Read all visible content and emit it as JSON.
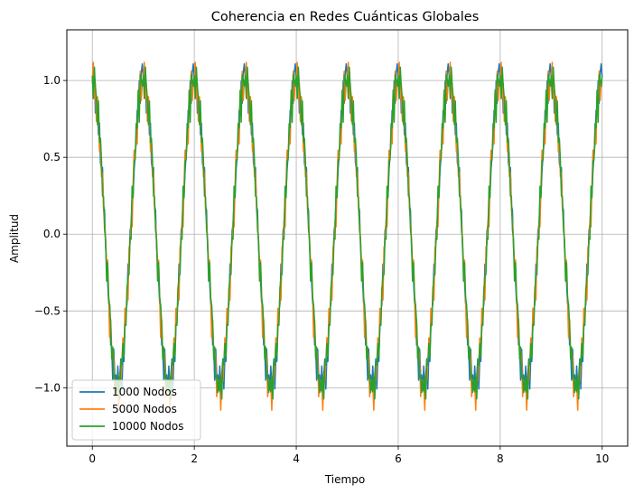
{
  "chart_data": {
    "type": "line",
    "title": "Coherencia en Redes Cuánticas Globales",
    "xlabel": "Tiempo",
    "ylabel": "Amplitud",
    "xlim": [
      -0.5,
      10.5
    ],
    "ylim": [
      -1.38,
      1.33
    ],
    "x_ticks": [
      0,
      2,
      4,
      6,
      8,
      10
    ],
    "y_ticks": [
      -1.0,
      -0.5,
      0.0,
      0.5,
      1.0
    ],
    "x_tick_labels": [
      "0",
      "2",
      "4",
      "6",
      "8",
      "10"
    ],
    "y_tick_labels": [
      "−1.0",
      "−0.5",
      "0.0",
      "0.5",
      "1.0"
    ],
    "grid": true,
    "legend_position": "lower-left",
    "x_start": 0,
    "x_end": 10,
    "period": 1,
    "series": [
      {
        "name": "1000 Nodos",
        "color": "#1f77b4",
        "noise": [
          0.08,
          -0.05,
          0.06,
          -0.1,
          0.04,
          0.09,
          -0.07,
          0.05,
          -0.09,
          0.03,
          0.1,
          -0.04,
          0.07,
          -0.08,
          0.02,
          0.06,
          -0.06,
          0.09,
          -0.03,
          0.05,
          -0.1,
          0.08,
          -0.02,
          0.04,
          -0.07,
          0.1,
          -0.05,
          0.03,
          0.07,
          -0.09,
          0.06,
          -0.04,
          0.02,
          0.08,
          -0.06,
          0.09,
          -0.08,
          0.04,
          -0.03,
          0.07,
          -0.1,
          0.05,
          0.03,
          -0.07,
          0.1,
          -0.02,
          0.06,
          -0.09,
          0.04,
          0.08
        ]
      },
      {
        "name": "5000 Nodos",
        "color": "#ff7f0e",
        "noise": [
          -0.06,
          0.09,
          -0.03,
          0.07,
          -0.1,
          0.05,
          0.02,
          -0.08,
          0.1,
          -0.04,
          0.06,
          -0.07,
          0.03,
          0.09,
          -0.05,
          0.08,
          -0.02,
          -0.09,
          0.07,
          -0.06,
          0.04,
          0.1,
          -0.08,
          0.05,
          -0.03,
          0.06,
          -0.1,
          0.09,
          -0.04,
          0.02,
          0.08,
          -0.07,
          0.1,
          -0.05,
          0.03,
          -0.09,
          0.07,
          -0.02,
          0.06,
          -0.08,
          0.05,
          0.09,
          -0.06,
          0.04,
          -0.1,
          0.08,
          -0.03,
          0.07,
          -0.05,
          0.02
        ]
      },
      {
        "name": "10000 Nodos",
        "color": "#2ca02c",
        "noise": [
          0.05,
          -0.08,
          0.1,
          -0.03,
          0.07,
          -0.06,
          0.09,
          -0.1,
          0.04,
          0.08,
          -0.05,
          0.02,
          -0.09,
          0.06,
          -0.07,
          0.1,
          -0.04,
          0.03,
          0.08,
          -0.06,
          0.05,
          -0.09,
          0.07,
          -0.02,
          0.1,
          -0.08,
          0.04,
          -0.05,
          0.09,
          -0.03,
          0.06,
          -0.1,
          0.08,
          -0.07,
          0.02,
          0.05,
          -0.04,
          0.09,
          -0.06,
          0.1,
          -0.03,
          0.07,
          -0.09,
          0.04,
          -0.05,
          0.08,
          -0.1,
          0.06,
          -0.02,
          0.03
        ]
      }
    ]
  }
}
